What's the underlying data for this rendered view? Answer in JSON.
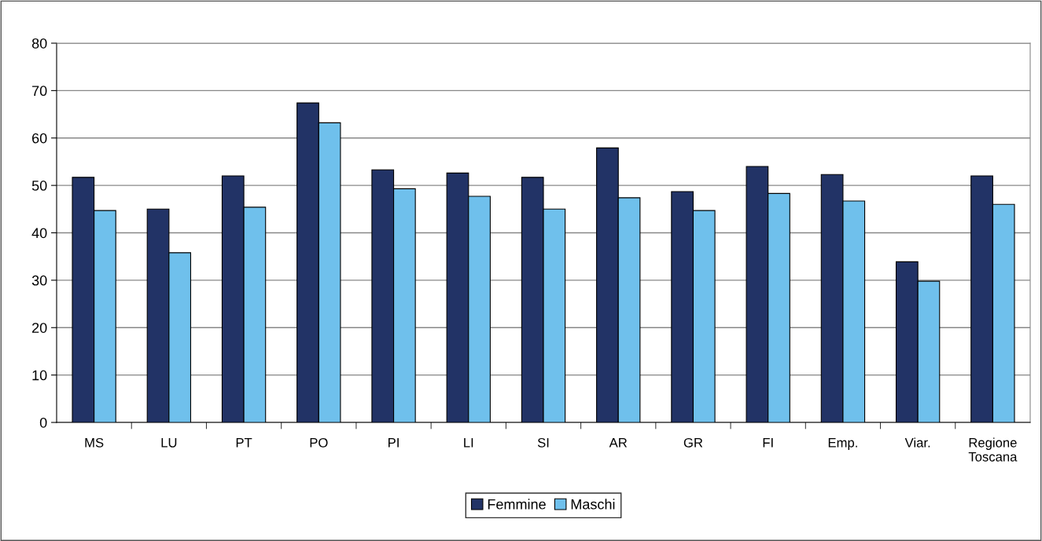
{
  "chart_data": {
    "type": "bar",
    "categories": [
      "MS",
      "LU",
      "PT",
      "PO",
      "PI",
      "LI",
      "SI",
      "AR",
      "GR",
      "FI",
      "Emp.",
      "Viar.",
      "Regione\nToscana"
    ],
    "series": [
      {
        "name": "Femmine",
        "color": "#223366",
        "values": [
          51.7,
          45.0,
          52.0,
          67.4,
          53.3,
          52.6,
          51.7,
          57.9,
          48.7,
          54.0,
          52.3,
          33.9,
          52.0
        ]
      },
      {
        "name": "Maschi",
        "color": "#6fc0ec",
        "values": [
          44.7,
          35.8,
          45.4,
          63.2,
          49.3,
          47.7,
          45.0,
          47.4,
          44.7,
          48.3,
          46.7,
          29.8,
          46.0
        ]
      }
    ],
    "ylim": [
      0,
      80
    ],
    "yticks": [
      0,
      10,
      20,
      30,
      40,
      50,
      60,
      70,
      80
    ],
    "grid": "y",
    "legend": "bottom"
  }
}
